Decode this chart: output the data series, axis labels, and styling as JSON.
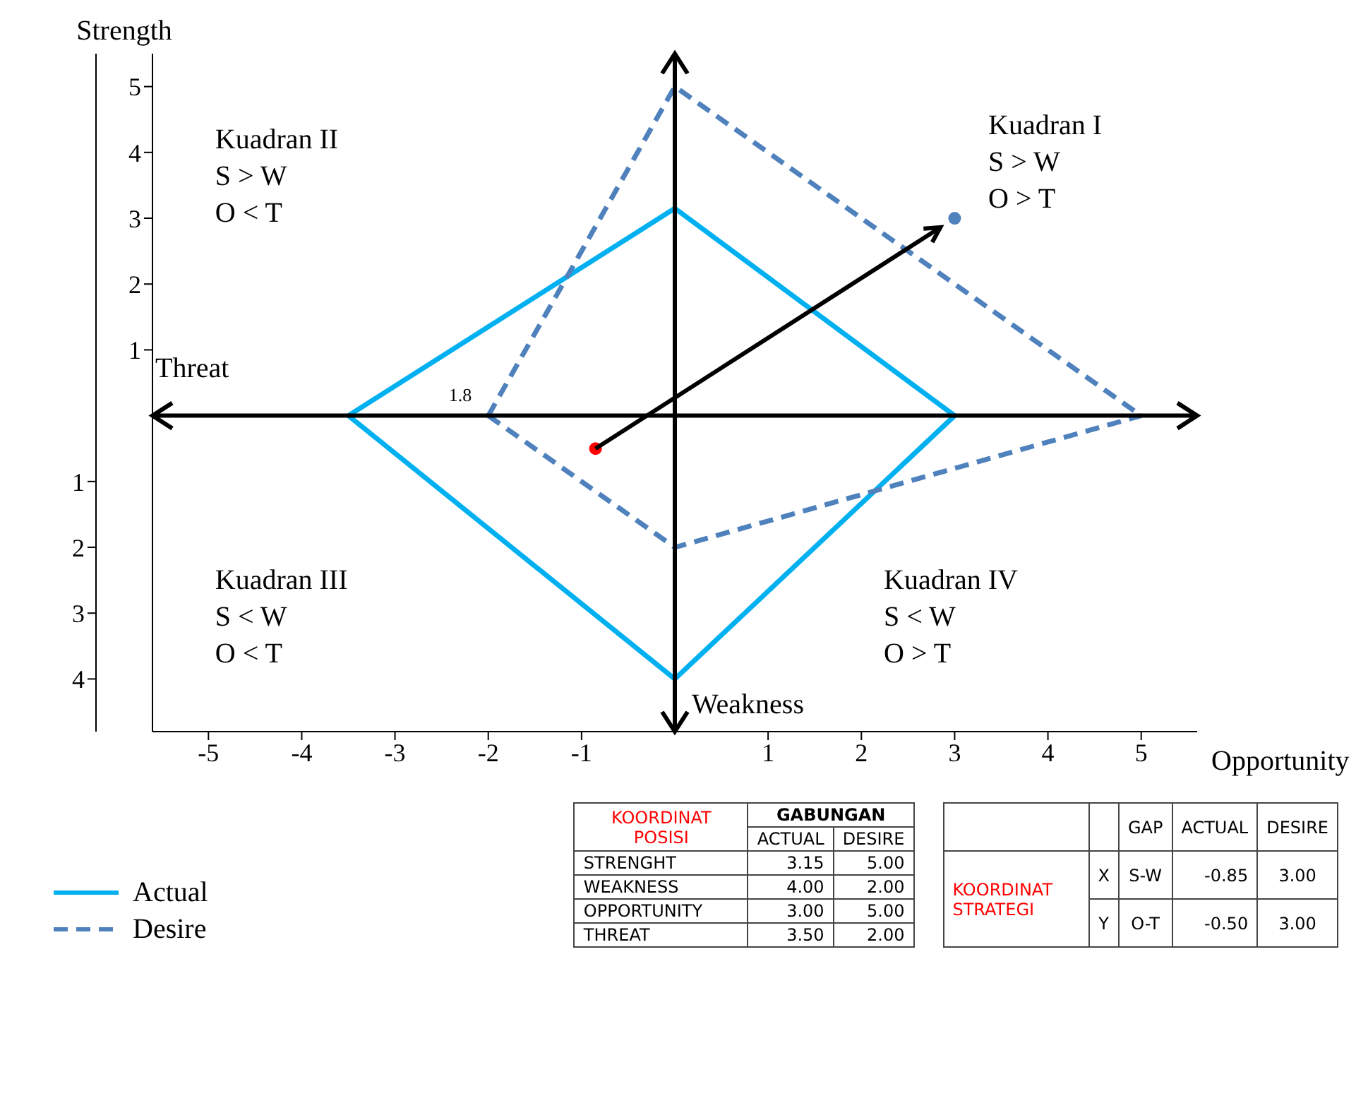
{
  "chart_data": {
    "type": "line",
    "xlabel": "Opportunity",
    "ylabel": "Strength",
    "xlim": [
      -5.6,
      5.6
    ],
    "ylim": [
      -4.8,
      5.5
    ],
    "xticks": [
      -5,
      -4,
      -3,
      -2,
      -1,
      1,
      2,
      3,
      4,
      5
    ],
    "yticks": [
      1,
      2,
      3,
      4,
      5
    ],
    "y2lim": [
      4.8,
      -5.5
    ],
    "y2ticks": [
      1,
      2,
      3,
      4
    ],
    "grid": false,
    "legend": "bottom left",
    "series": [
      {
        "name": "Actual",
        "color": "#00b0f0",
        "line_style": "solid",
        "marker": "none",
        "x": [
          -3.5,
          0,
          3
        ],
        "values": [
          0,
          3.15,
          0
        ]
      },
      {
        "color": "#00b0f0",
        "line_style": "solid",
        "marker": "none",
        "x": [
          -3.5,
          0,
          3
        ],
        "values": [
          0,
          -4,
          0
        ]
      },
      {
        "name": "Desire",
        "color": "#4f81bd",
        "line_style": "dashed",
        "marker": "none",
        "x": [
          -2,
          0,
          5
        ],
        "values": [
          0,
          5,
          0
        ]
      },
      {
        "color": "#4f81bd",
        "line_style": "dashed",
        "marker": "none",
        "x": [
          -2,
          0,
          5
        ],
        "values": [
          0,
          -2,
          0
        ]
      },
      {
        "type": "scatter",
        "marker": "circle",
        "colors": [
          "#ff0000",
          "#4f81bd"
        ],
        "x": [
          -0.85,
          3
        ],
        "values": [
          -0.5,
          3
        ]
      }
    ],
    "annotations": [
      "Threat",
      "Weakness",
      "Kuadran I\nS > W\nO > T",
      "Kuadran II\nS > W\nO < T",
      "Kuadran III\nS < W\nO < T",
      "Kuadran IV\nS < W\nO > T",
      "1.8",
      "KOORDINAT POSISI",
      "GABUNGAN",
      "ACTUAL",
      "DESIRE",
      "STRENGHT",
      "3.15",
      "5.00",
      "WEAKNESS",
      "4.00",
      "2.00",
      "OPPORTUNITY",
      "3.00",
      "5.00",
      "THREAT",
      "3.50",
      "2.00",
      "GAP",
      "ACTUAL",
      "DESIRE",
      "KOORDINAT STRATEGI",
      "X",
      "S-W",
      "-0.85",
      "3.00",
      "Y",
      "O-T",
      "-0.50",
      "3.00"
    ]
  }
}
